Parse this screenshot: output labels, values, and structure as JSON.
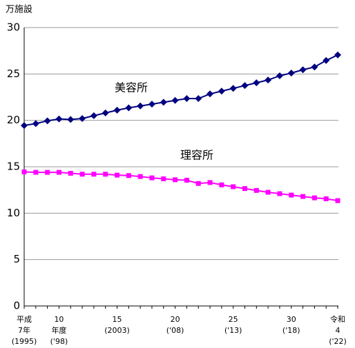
{
  "chart_data": {
    "type": "line",
    "unit_label": "万施設",
    "categories": [
      "平成\n7年\n(1995)",
      null,
      null,
      "10\n年度\n('98)",
      null,
      null,
      null,
      null,
      "15\n(2003)",
      null,
      null,
      null,
      null,
      "20\n('08)",
      null,
      null,
      null,
      null,
      "25\n('13)",
      null,
      null,
      null,
      null,
      "30\n('18)",
      null,
      null,
      null,
      "令和\n4\n('22)"
    ],
    "series": [
      {
        "name": "美容所",
        "color": "#000080",
        "marker": "diamond",
        "values": [
          19.45,
          19.65,
          19.95,
          20.15,
          20.1,
          20.2,
          20.5,
          20.8,
          21.1,
          21.35,
          21.55,
          21.75,
          21.95,
          22.15,
          22.35,
          22.35,
          22.85,
          23.15,
          23.45,
          23.75,
          24.05,
          24.35,
          24.8,
          25.1,
          25.45,
          25.75,
          26.45,
          27.05
        ]
      },
      {
        "name": "理容所",
        "color": "#ff00ff",
        "marker": "square",
        "values": [
          14.45,
          14.4,
          14.4,
          14.4,
          14.3,
          14.2,
          14.2,
          14.2,
          14.1,
          14.05,
          13.95,
          13.8,
          13.7,
          13.6,
          13.55,
          13.2,
          13.3,
          13.05,
          12.85,
          12.65,
          12.45,
          12.25,
          12.1,
          11.95,
          11.8,
          11.65,
          11.55,
          11.35
        ]
      }
    ],
    "ylim": [
      0,
      30
    ],
    "yticks": [
      0,
      5,
      10,
      15,
      20,
      25,
      30
    ],
    "grid": true
  }
}
